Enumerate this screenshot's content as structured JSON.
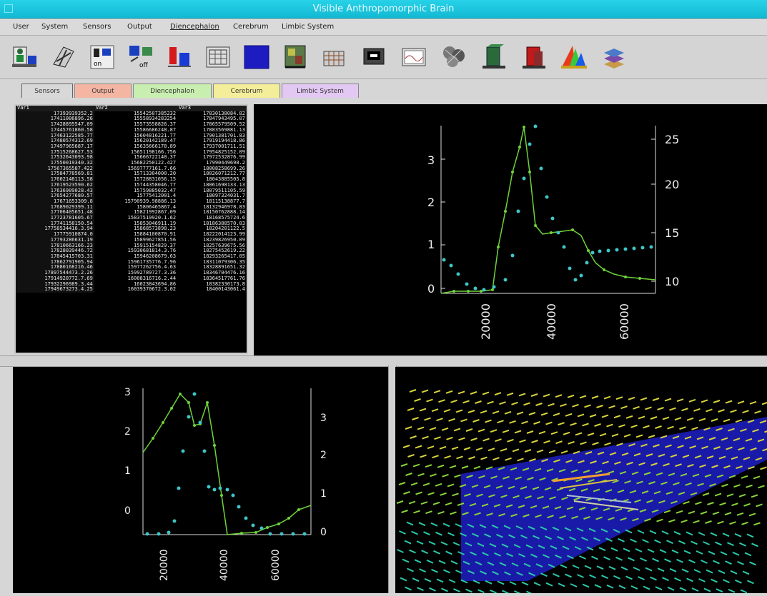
{
  "window": {
    "title": "Visible Anthropomorphic Brain"
  },
  "menu": [
    "User",
    "System",
    "Sensors",
    "Output",
    "Diencephalon",
    "Cerebrum",
    "Limbic System"
  ],
  "toolbar": [
    "user-sensor-icon",
    "network-icon",
    "input-icon",
    "output-off-icon",
    "color-bars-icon",
    "grid-panel-icon",
    "blue-panel-icon",
    "map-panel-icon",
    "small-grid-icon",
    "monitor-icon",
    "wave-panel-icon",
    "neural-blob-icon",
    "green-block-icon",
    "red-block-icon",
    "rainbow-icon",
    "layers-icon"
  ],
  "tabs": [
    {
      "label": "Sensors",
      "color": "#d8d8d8"
    },
    {
      "label": "Output",
      "color": "#f4b6a3"
    },
    {
      "label": "Diencephalon",
      "color": "#c8eeb0"
    },
    {
      "label": "Cerebrum",
      "color": "#f4ee9a"
    },
    {
      "label": "Limbic System",
      "color": "#e2c8f2"
    }
  ],
  "table": {
    "headers": [
      "Var1",
      "Var2",
      "Var3"
    ],
    "rows": [
      [
        "17393939352.2",
        "15542507385232",
        "17830138084.82"
      ],
      [
        "17411006896.26",
        "15558934283254",
        "17847943495.07"
      ],
      [
        "17428895547.09",
        "15573558826.37",
        "17865579509.52"
      ],
      [
        "17445761860.58",
        "15586686248.87",
        "17883569881.13"
      ],
      [
        "17463122585.77",
        "15604816221.77",
        "17901381701.83"
      ],
      [
        "17480574312.69",
        "15620142189.47",
        "17919194418.86"
      ],
      [
        "17497965687.17",
        "15635666178.89",
        "17937001711.51"
      ],
      [
        "17515268627.53",
        "15651198166.756",
        "17954825152.09"
      ],
      [
        "17532643093.98",
        "15666722140.37",
        "17972532876.99"
      ],
      [
        "17550019340.32",
        "15682250122.427",
        "17990449698.2"
      ],
      [
        "17567365587.422",
        "15697777161.7.66",
        "18008258699.26"
      ],
      [
        "17584778569.81",
        "15713304000.20",
        "18026071212.77"
      ],
      [
        "17602148113.58",
        "15728831056.15",
        "18043885505.8"
      ],
      [
        "17619523590.62",
        "15744358046.77",
        "18061698133.13"
      ],
      [
        "17636909028.43",
        "15759885032.47",
        "18079511105.59"
      ],
      [
        "17654277680.57",
        "15775412001.4",
        "18097324031.7"
      ],
      [
        "17671653309.8",
        "15790939.98886.13",
        "18115138877.7"
      ],
      [
        "17689029399.11",
        "15806465867.4",
        "18132946978.83"
      ],
      [
        "17706405651.48",
        "15821992867.09",
        "18150762888.14"
      ],
      [
        "17723781605.67",
        "15837519920.1.62",
        "18168575724.6"
      ],
      [
        "17741158150.54",
        "15853046911.19",
        "18186388570.03"
      ],
      [
        "17758534416.3.94",
        "15868573898.23",
        "18204201122.5"
      ],
      [
        "17775910874.0",
        "15884100870.91",
        "18222014123.99"
      ],
      [
        "17793286631.19",
        "15899627851.56",
        "18239826950.09"
      ],
      [
        "17810663166.23",
        "15915154829.37",
        "18257639675.56"
      ],
      [
        "17828039446.72",
        "15930681814.3.76",
        "18275452619.22"
      ],
      [
        "17845415703.31",
        "15946208679.63",
        "18293265417.05"
      ],
      [
        "17862791905.94",
        "15961735776.7.96",
        "18311079306.35"
      ],
      [
        "17880168216.46",
        "15977262756.4.63",
        "18328891651.32"
      ],
      [
        "17897544473.2.26",
        "15992789727.3.36",
        "18346704476.16"
      ],
      [
        "17914920772.7.69",
        "16008316716.2.44",
        "18364517761.76"
      ],
      [
        "17932296989.3.44",
        "16023843694.86",
        "18382330173.8"
      ],
      [
        "17949673273.4.25",
        "16039370672.3.02",
        "18400143061.4"
      ]
    ]
  },
  "chart_top": {
    "y_left_ticks": [
      "0",
      "1",
      "2",
      "3"
    ],
    "y_right_ticks": [
      "10",
      "15",
      "20",
      "25"
    ],
    "x_ticks": [
      "20000",
      "40000",
      "60000"
    ]
  },
  "chart_bottom": {
    "y_left_ticks": [
      "0",
      "1",
      "2",
      "3"
    ],
    "y_right_ticks": [
      "0",
      "1",
      "2",
      "3"
    ],
    "x_ticks": [
      "20000",
      "40000",
      "60000"
    ]
  },
  "colors": {
    "green": "#6fd23a",
    "cyan": "#3ec6c8",
    "plane": "#1a1aa8"
  }
}
